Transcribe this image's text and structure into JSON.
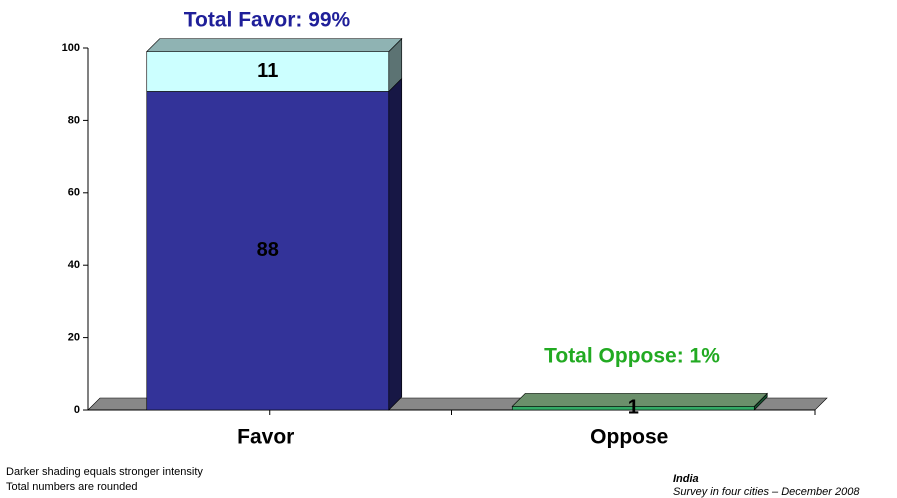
{
  "chart_data": {
    "type": "stacked_bar_3d",
    "categories": [
      "Favor",
      "Oppose"
    ],
    "series": [
      {
        "colors": [
          "#333399",
          "#33aa66"
        ],
        "values": [
          88,
          1
        ],
        "value_labels": [
          "88",
          "1"
        ]
      },
      {
        "colors": [
          "#ccffff",
          "#99cc99"
        ],
        "values": [
          11,
          0
        ],
        "value_labels": [
          "11",
          null
        ]
      }
    ],
    "ylim": [
      0,
      100
    ],
    "yticks": [
      0,
      20,
      40,
      60,
      80,
      100
    ],
    "annotations": [
      {
        "text": "Total Favor: 99%",
        "color": "#1f1f99"
      },
      {
        "text": "Total Oppose: 1%",
        "color": "#22aa22"
      }
    ],
    "notes": [
      "Darker shading equals stronger intensity",
      "Total numbers are rounded"
    ],
    "source": {
      "title": "India",
      "subtitle": "Survey in four cities – December 2008"
    }
  }
}
